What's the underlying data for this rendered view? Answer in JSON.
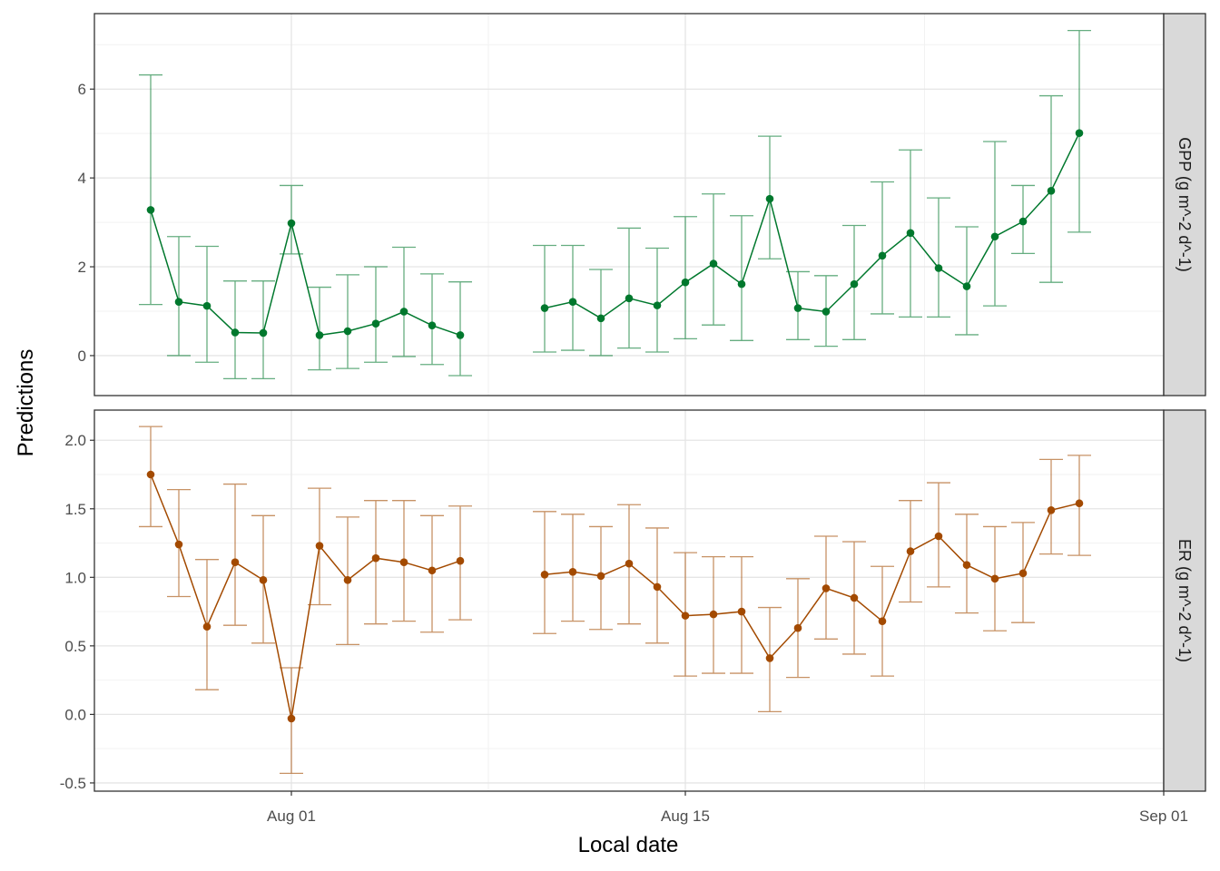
{
  "chart_data": {
    "type": "line",
    "xlabel": "Local date",
    "ylabel": "Predictions",
    "x_ticks": [
      "Aug 01",
      "Aug 15",
      "Sep 01"
    ],
    "x_tick_values": [
      "2023-08-01",
      "2023-08-15",
      "2023-09-01"
    ],
    "xlim": [
      "2023-07-25",
      "2023-09-01"
    ],
    "grid": true,
    "legend": "none",
    "facets": [
      {
        "strip_label": "GPP (g m^-2 d^-1)",
        "color": "#00782d",
        "ylim": [
          -0.9,
          7.7
        ],
        "y_ticks": [
          0,
          2,
          4,
          6
        ],
        "y_tick_labels": [
          "0",
          "2",
          "4",
          "6"
        ],
        "points": [
          {
            "x": "2023-07-27",
            "y": 3.28,
            "lo": 1.15,
            "hi": 6.32
          },
          {
            "x": "2023-07-28",
            "y": 1.21,
            "lo": 0.0,
            "hi": 2.68
          },
          {
            "x": "2023-07-29",
            "y": 1.12,
            "lo": -0.15,
            "hi": 2.46
          },
          {
            "x": "2023-07-30",
            "y": 0.52,
            "lo": -0.52,
            "hi": 1.68
          },
          {
            "x": "2023-07-31",
            "y": 0.51,
            "lo": -0.52,
            "hi": 1.68
          },
          {
            "x": "2023-08-01",
            "y": 2.98,
            "lo": 2.29,
            "hi": 3.83
          },
          {
            "x": "2023-08-02",
            "y": 0.46,
            "lo": -0.32,
            "hi": 1.54
          },
          {
            "x": "2023-08-03",
            "y": 0.55,
            "lo": -0.29,
            "hi": 1.82
          },
          {
            "x": "2023-08-04",
            "y": 0.72,
            "lo": -0.15,
            "hi": 2.0
          },
          {
            "x": "2023-08-05",
            "y": 0.99,
            "lo": -0.02,
            "hi": 2.44
          },
          {
            "x": "2023-08-06",
            "y": 0.68,
            "lo": -0.2,
            "hi": 1.84
          },
          {
            "x": "2023-08-07",
            "y": 0.46,
            "lo": -0.45,
            "hi": 1.66
          },
          {
            "x": "2023-08-10",
            "y": 1.07,
            "lo": 0.08,
            "hi": 2.48
          },
          {
            "x": "2023-08-11",
            "y": 1.21,
            "lo": 0.12,
            "hi": 2.48
          },
          {
            "x": "2023-08-12",
            "y": 0.84,
            "lo": 0.0,
            "hi": 1.94
          },
          {
            "x": "2023-08-13",
            "y": 1.29,
            "lo": 0.17,
            "hi": 2.87
          },
          {
            "x": "2023-08-14",
            "y": 1.13,
            "lo": 0.08,
            "hi": 2.42
          },
          {
            "x": "2023-08-15",
            "y": 1.65,
            "lo": 0.38,
            "hi": 3.13
          },
          {
            "x": "2023-08-16",
            "y": 2.07,
            "lo": 0.69,
            "hi": 3.64
          },
          {
            "x": "2023-08-17",
            "y": 1.61,
            "lo": 0.34,
            "hi": 3.15
          },
          {
            "x": "2023-08-18",
            "y": 3.53,
            "lo": 2.18,
            "hi": 4.94
          },
          {
            "x": "2023-08-19",
            "y": 1.07,
            "lo": 0.36,
            "hi": 1.89
          },
          {
            "x": "2023-08-20",
            "y": 0.99,
            "lo": 0.21,
            "hi": 1.8
          },
          {
            "x": "2023-08-21",
            "y": 1.61,
            "lo": 0.36,
            "hi": 2.93
          },
          {
            "x": "2023-08-22",
            "y": 2.25,
            "lo": 0.94,
            "hi": 3.91
          },
          {
            "x": "2023-08-23",
            "y": 2.76,
            "lo": 0.87,
            "hi": 4.63
          },
          {
            "x": "2023-08-24",
            "y": 1.97,
            "lo": 0.87,
            "hi": 3.55
          },
          {
            "x": "2023-08-25",
            "y": 1.56,
            "lo": 0.47,
            "hi": 2.9
          },
          {
            "x": "2023-08-26",
            "y": 2.68,
            "lo": 1.12,
            "hi": 4.82
          },
          {
            "x": "2023-08-27",
            "y": 3.02,
            "lo": 2.3,
            "hi": 3.83
          },
          {
            "x": "2023-08-28",
            "y": 3.71,
            "lo": 1.65,
            "hi": 5.85
          },
          {
            "x": "2023-08-29",
            "y": 5.01,
            "lo": 2.78,
            "hi": 7.32
          }
        ]
      },
      {
        "strip_label": "ER (g m^-2 d^-1)",
        "color": "#a34a00",
        "ylim": [
          -0.56,
          2.22
        ],
        "y_ticks": [
          -0.5,
          0.0,
          0.5,
          1.0,
          1.5,
          2.0
        ],
        "y_tick_labels": [
          "-0.5",
          "0.0",
          "0.5",
          "1.0",
          "1.5",
          "2.0"
        ],
        "points": [
          {
            "x": "2023-07-27",
            "y": 1.75,
            "lo": 1.37,
            "hi": 2.1
          },
          {
            "x": "2023-07-28",
            "y": 1.24,
            "lo": 0.86,
            "hi": 1.64
          },
          {
            "x": "2023-07-29",
            "y": 0.64,
            "lo": 0.18,
            "hi": 1.13
          },
          {
            "x": "2023-07-30",
            "y": 1.11,
            "lo": 0.65,
            "hi": 1.68
          },
          {
            "x": "2023-07-31",
            "y": 0.98,
            "lo": 0.52,
            "hi": 1.45
          },
          {
            "x": "2023-08-01",
            "y": -0.03,
            "lo": -0.43,
            "hi": 0.34
          },
          {
            "x": "2023-08-02",
            "y": 1.23,
            "lo": 0.8,
            "hi": 1.65
          },
          {
            "x": "2023-08-03",
            "y": 0.98,
            "lo": 0.51,
            "hi": 1.44
          },
          {
            "x": "2023-08-04",
            "y": 1.14,
            "lo": 0.66,
            "hi": 1.56
          },
          {
            "x": "2023-08-05",
            "y": 1.11,
            "lo": 0.68,
            "hi": 1.56
          },
          {
            "x": "2023-08-06",
            "y": 1.05,
            "lo": 0.6,
            "hi": 1.45
          },
          {
            "x": "2023-08-07",
            "y": 1.12,
            "lo": 0.69,
            "hi": 1.52
          },
          {
            "x": "2023-08-10",
            "y": 1.02,
            "lo": 0.59,
            "hi": 1.48
          },
          {
            "x": "2023-08-11",
            "y": 1.04,
            "lo": 0.68,
            "hi": 1.46
          },
          {
            "x": "2023-08-12",
            "y": 1.01,
            "lo": 0.62,
            "hi": 1.37
          },
          {
            "x": "2023-08-13",
            "y": 1.1,
            "lo": 0.66,
            "hi": 1.53
          },
          {
            "x": "2023-08-14",
            "y": 0.93,
            "lo": 0.52,
            "hi": 1.36
          },
          {
            "x": "2023-08-15",
            "y": 0.72,
            "lo": 0.28,
            "hi": 1.18
          },
          {
            "x": "2023-08-16",
            "y": 0.73,
            "lo": 0.3,
            "hi": 1.15
          },
          {
            "x": "2023-08-17",
            "y": 0.75,
            "lo": 0.3,
            "hi": 1.15
          },
          {
            "x": "2023-08-18",
            "y": 0.41,
            "lo": 0.02,
            "hi": 0.78
          },
          {
            "x": "2023-08-19",
            "y": 0.63,
            "lo": 0.27,
            "hi": 0.99
          },
          {
            "x": "2023-08-20",
            "y": 0.92,
            "lo": 0.55,
            "hi": 1.3
          },
          {
            "x": "2023-08-21",
            "y": 0.85,
            "lo": 0.44,
            "hi": 1.26
          },
          {
            "x": "2023-08-22",
            "y": 0.68,
            "lo": 0.28,
            "hi": 1.08
          },
          {
            "x": "2023-08-23",
            "y": 1.19,
            "lo": 0.82,
            "hi": 1.56
          },
          {
            "x": "2023-08-24",
            "y": 1.3,
            "lo": 0.93,
            "hi": 1.69
          },
          {
            "x": "2023-08-25",
            "y": 1.09,
            "lo": 0.74,
            "hi": 1.46
          },
          {
            "x": "2023-08-26",
            "y": 0.99,
            "lo": 0.61,
            "hi": 1.37
          },
          {
            "x": "2023-08-27",
            "y": 1.03,
            "lo": 0.67,
            "hi": 1.4
          },
          {
            "x": "2023-08-28",
            "y": 1.49,
            "lo": 1.17,
            "hi": 1.86
          },
          {
            "x": "2023-08-29",
            "y": 1.54,
            "lo": 1.16,
            "hi": 1.89
          }
        ]
      }
    ]
  }
}
